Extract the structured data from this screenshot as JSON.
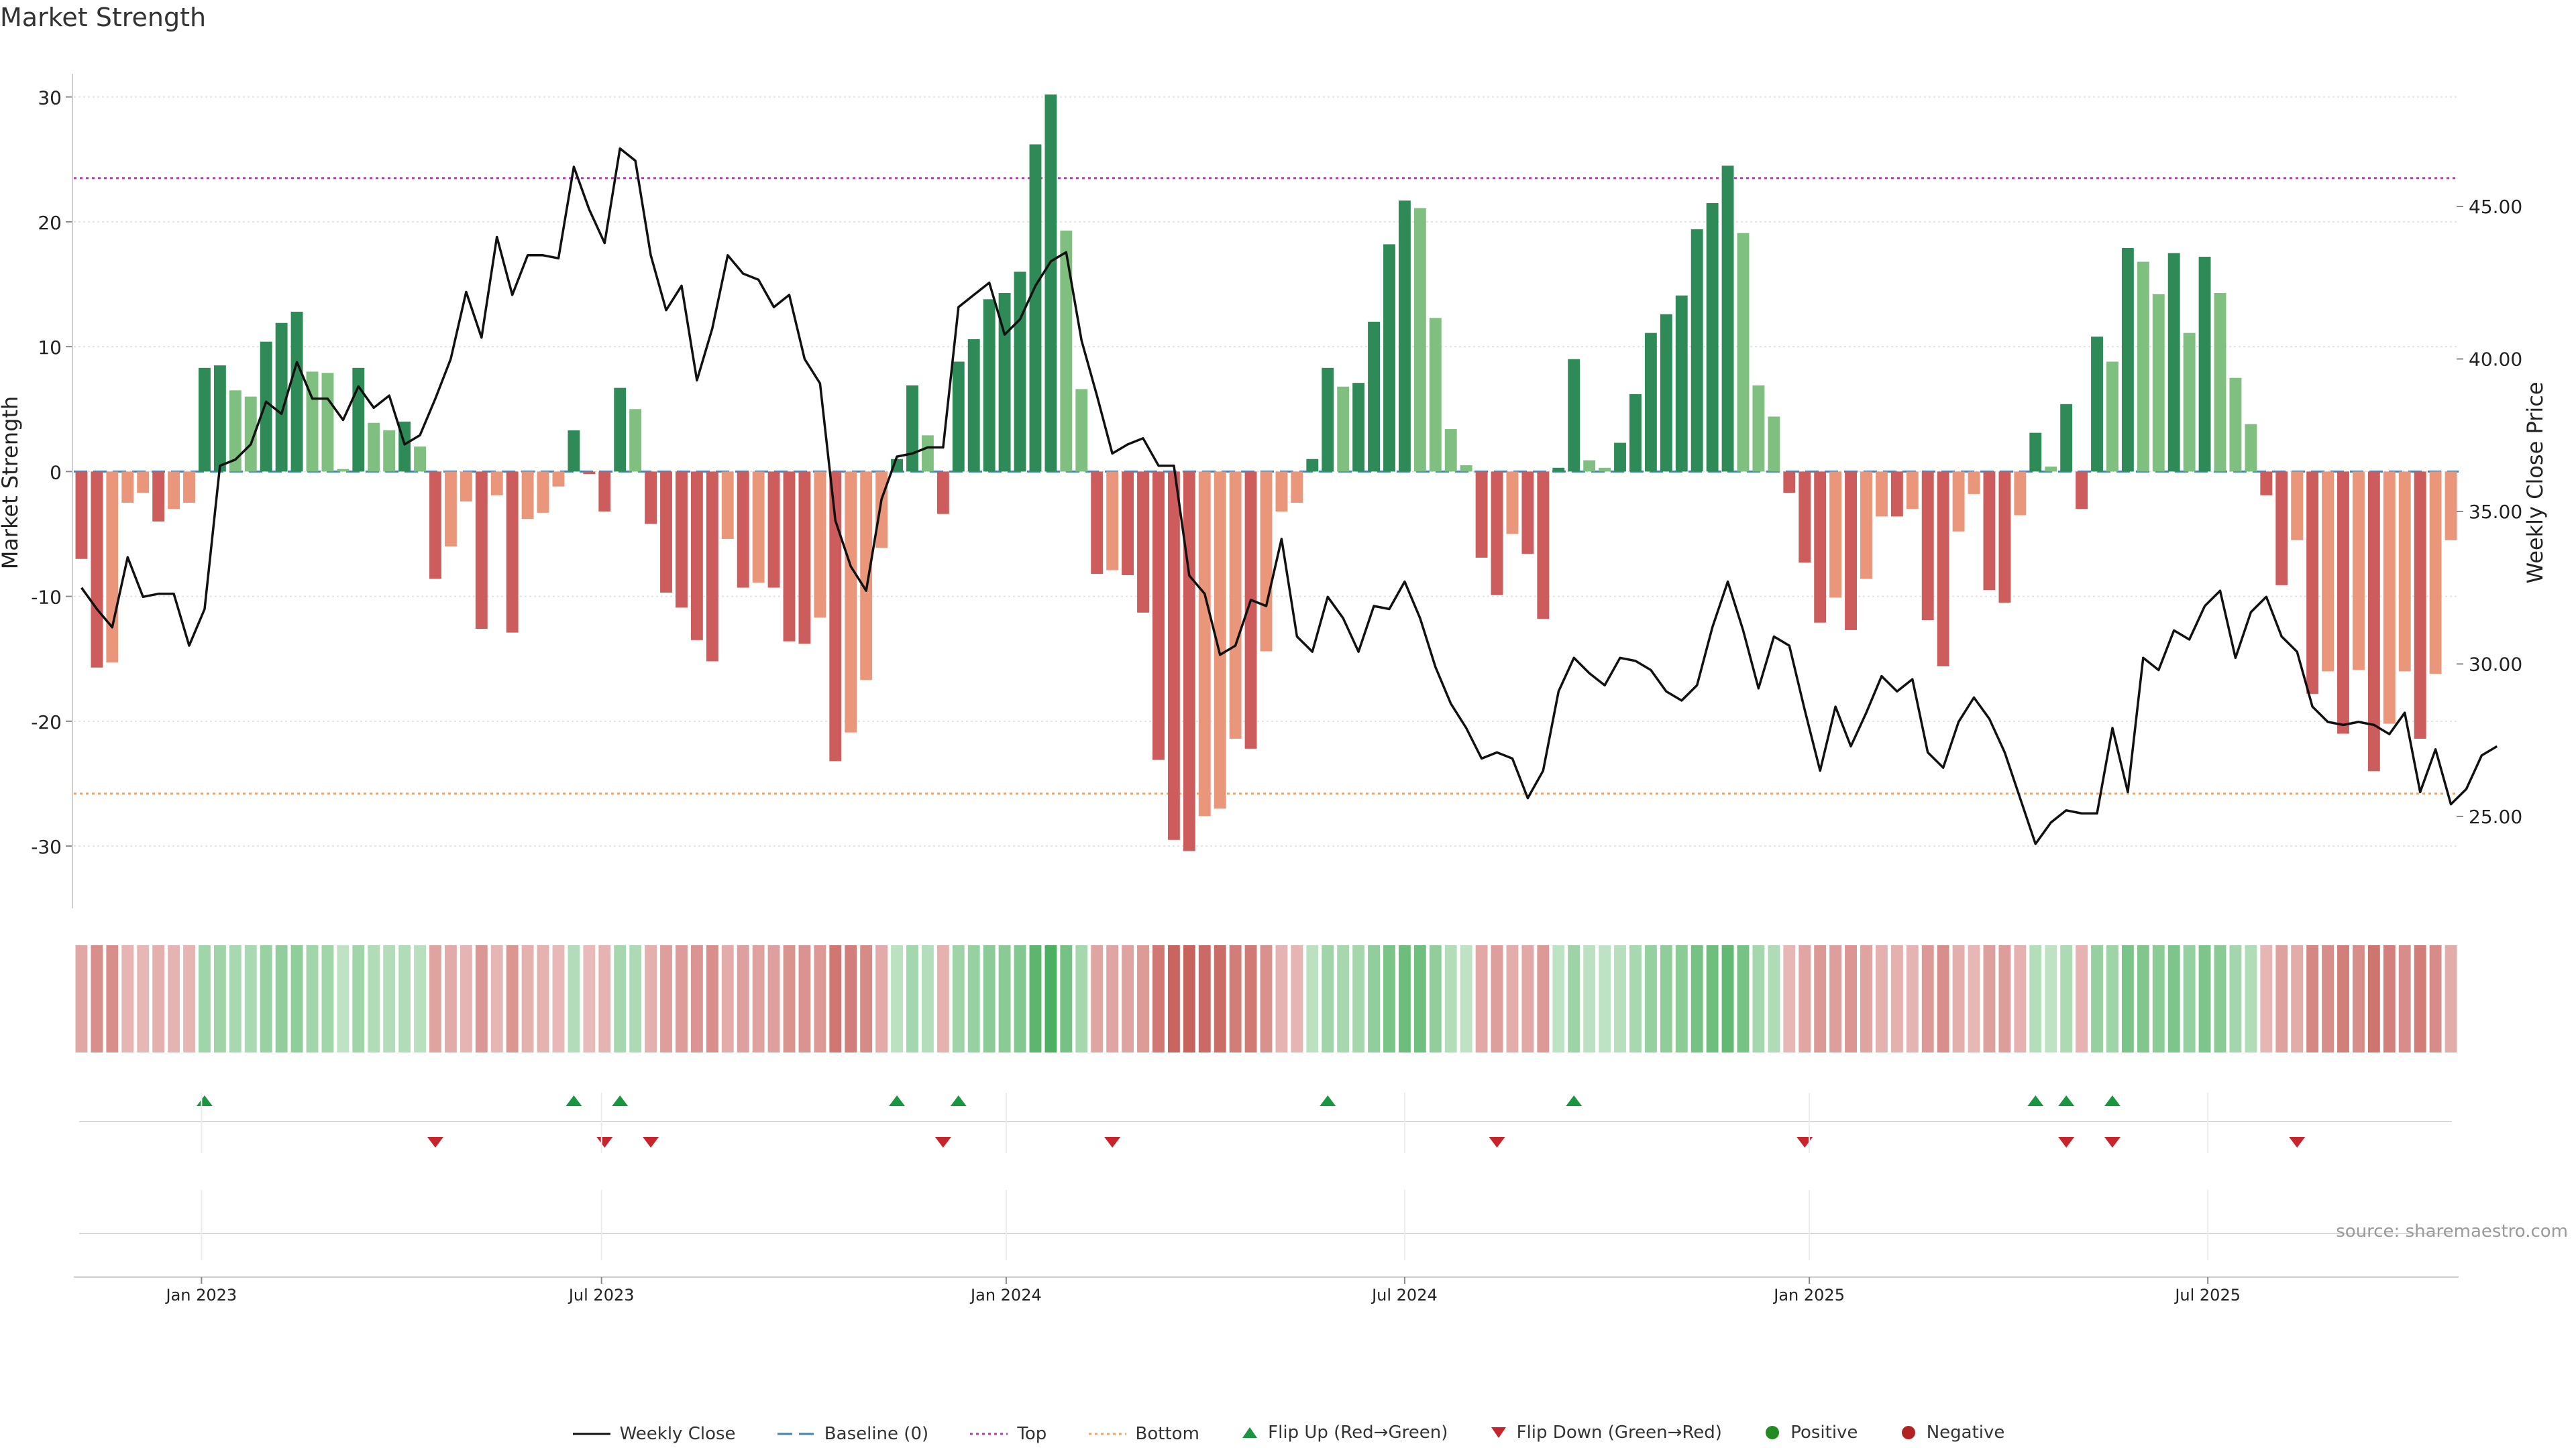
{
  "title": "Market Strength",
  "source_text": "source: sharemaestro.com",
  "chart_data": {
    "type": "bar",
    "title": "Market Strength",
    "ylabel_left": "Market Strength",
    "ylabel_right": "Weekly Close Price",
    "ylim_left": [
      -33,
      31
    ],
    "ylim_right": [
      22.8,
      49.0
    ],
    "yticks_left": [
      30,
      20,
      10,
      0,
      -10,
      -20,
      -30
    ],
    "yticks_right": [
      "45.00",
      "40.00",
      "35.00",
      "30.00",
      "25.00"
    ],
    "yticks_right_values": [
      45,
      40,
      35,
      30,
      25
    ],
    "x_tick_labels": [
      "Jan 2023",
      "Jul 2023",
      "Jan 2024",
      "Jul 2024",
      "Jan 2025",
      "Jul 2025"
    ],
    "x_tick_weeks": [
      8.3,
      34.3,
      60.6,
      86.5,
      112.8,
      138.7
    ],
    "top_level": 23.5,
    "bottom_level": -25.8,
    "strength_values": [
      -7,
      -15.7,
      -15.3,
      -2.5,
      -1.7,
      -4,
      -3,
      -2.5,
      8.3,
      8.5,
      6.5,
      6,
      10.4,
      11.9,
      12.8,
      8,
      7.9,
      0.2,
      8.3,
      3.9,
      3.3,
      4,
      2,
      -8.6,
      -6,
      -2.4,
      -12.6,
      -1.9,
      -12.9,
      -3.8,
      -3.3,
      -1.2,
      3.3,
      -0.2,
      -3.2,
      6.7,
      5,
      -4.2,
      -9.7,
      -10.9,
      -13.5,
      -15.2,
      -5.4,
      -9.3,
      -8.9,
      -9.3,
      -13.6,
      -13.8,
      -11.7,
      -23.2,
      -20.9,
      -16.7,
      -6.1,
      1,
      6.9,
      2.9,
      -3.4,
      8.8,
      10.6,
      13.8,
      14.3,
      16,
      26.2,
      30.2,
      19.3,
      6.6,
      -8.2,
      -7.9,
      -8.3,
      -11.3,
      -23.1,
      -29.5,
      -30.4,
      -27.6,
      -27,
      -21.4,
      -22.2,
      -14.4,
      -3.2,
      -2.5,
      1,
      8.3,
      6.8,
      7.1,
      12,
      18.2,
      21.7,
      21.1,
      12.3,
      3.4,
      0.5,
      -6.9,
      -9.9,
      -5,
      -6.6,
      -11.8,
      0.3,
      9,
      0.9,
      0.3,
      2.3,
      6.2,
      11.1,
      12.6,
      14.1,
      19.4,
      21.5,
      24.5,
      19.1,
      6.9,
      4.4,
      -1.7,
      -7.3,
      -12.1,
      -10.1,
      -12.7,
      -8.6,
      -3.6,
      -3.6,
      -3,
      -11.9,
      -15.6,
      -4.8,
      -1.8,
      -9.5,
      -10.5,
      -3.5,
      3.1,
      0.4,
      5.4,
      -3,
      10.8,
      8.8,
      17.9,
      16.8,
      14.2,
      17.5,
      11.1,
      17.2,
      14.3,
      7.5,
      3.8,
      -1.9,
      -9.1,
      -5.5,
      -17.8,
      -16,
      -21,
      -15.9,
      -24,
      -20.2,
      -16,
      -21.4,
      -16.2,
      -5.5
    ],
    "weekly_close": [
      32.5,
      31.8,
      31.2,
      33.5,
      32.2,
      32.3,
      32.3,
      30.6,
      31.8,
      36.5,
      36.7,
      37.2,
      38.6,
      38.2,
      39.9,
      38.7,
      38.7,
      38.0,
      39.1,
      38.4,
      38.8,
      37.2,
      37.5,
      38.7,
      40.0,
      42.2,
      40.7,
      44.0,
      42.1,
      43.4,
      43.4,
      43.3,
      46.3,
      44.9,
      43.8,
      46.9,
      46.5,
      43.4,
      41.6,
      42.4,
      39.3,
      41.0,
      43.4,
      42.8,
      42.6,
      41.7,
      42.1,
      40.0,
      39.2,
      34.7,
      33.2,
      32.4,
      35.4,
      36.8,
      36.9,
      37.1,
      37.1,
      41.7,
      42.1,
      42.5,
      40.8,
      41.3,
      42.4,
      43.2,
      43.5,
      40.6,
      38.8,
      36.9,
      37.2,
      37.4,
      36.5,
      36.5,
      32.9,
      32.3,
      30.3,
      30.6,
      32.1,
      31.9,
      34.1,
      30.9,
      30.4,
      32.2,
      31.5,
      30.4,
      31.9,
      31.8,
      32.7,
      31.5,
      29.9,
      28.7,
      27.9,
      26.9,
      27.1,
      26.9,
      25.6,
      26.5,
      29.1,
      30.2,
      29.7,
      29.3,
      30.2,
      30.1,
      29.8,
      29.1,
      28.8,
      29.3,
      31.2,
      32.7,
      31.1,
      29.2,
      30.9,
      30.6,
      28.5,
      26.5,
      28.6,
      27.3,
      28.4,
      29.6,
      29.1,
      29.5,
      27.1,
      26.6,
      28.1,
      28.9,
      28.2,
      27.1,
      25.6,
      24.1,
      24.8,
      25.2,
      25.1,
      25.1,
      27.9,
      25.8,
      30.2,
      29.8,
      31.1,
      30.8,
      31.9,
      32.4,
      30.2,
      31.7,
      32.2,
      30.9,
      30.4,
      28.6,
      28.1,
      28.0,
      28.1,
      28.0,
      27.7,
      28.4,
      25.8,
      27.2,
      25.4,
      25.9,
      27.0,
      27.3
    ],
    "flip_up_weeks": [
      8,
      32,
      35,
      53,
      57,
      81,
      97,
      127,
      129,
      132
    ],
    "flip_down_weeks": [
      23,
      34,
      37,
      56,
      67,
      92,
      112,
      129,
      132,
      144
    ],
    "series": [
      {
        "name": "Weekly Close"
      },
      {
        "name": "Baseline (0)"
      },
      {
        "name": "Top"
      },
      {
        "name": "Bottom"
      },
      {
        "name": "Flip Up (Red→Green)"
      },
      {
        "name": "Flip Down (Green→Red)"
      },
      {
        "name": "Positive"
      },
      {
        "name": "Negative"
      }
    ]
  },
  "legend": [
    {
      "key": "close",
      "label": "Weekly Close"
    },
    {
      "key": "baseline",
      "label": "Baseline (0)"
    },
    {
      "key": "top",
      "label": "Top"
    },
    {
      "key": "bottom",
      "label": "Bottom"
    },
    {
      "key": "flipup",
      "label": "Flip Up (Red→Green)"
    },
    {
      "key": "flipdown",
      "label": "Flip Down (Green→Red)"
    },
    {
      "key": "positive",
      "label": "Positive"
    },
    {
      "key": "negative",
      "label": "Negative"
    }
  ],
  "colors": {
    "pos_strong": "#2e8b57",
    "pos_weak": "#7fbf7f",
    "neg_strong": "#cd5c5c",
    "neg_weak": "#e9967a",
    "close_line": "#111111",
    "baseline": "#4682b4",
    "top": "#b03fb0",
    "bottom": "#f4a460",
    "flip_up": "#1a9641",
    "flip_down": "#c8242b",
    "positive_dot": "#228b22",
    "negative_dot": "#b22222",
    "grid": "#e3e3e3",
    "axis": "#cfcfcf"
  }
}
